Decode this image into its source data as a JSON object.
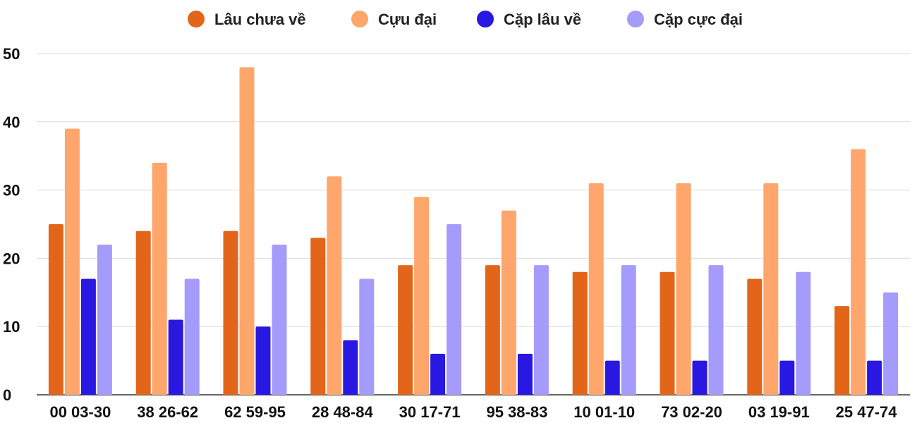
{
  "chart_data": {
    "type": "bar",
    "title": "",
    "xlabel": "",
    "ylabel": "",
    "ylim": [
      0,
      50
    ],
    "yticks": [
      0,
      10,
      20,
      30,
      40,
      50
    ],
    "grid": true,
    "legend_position": "top-center",
    "categories": [
      "00 03-30",
      "38 26-62",
      "62 59-95",
      "28 48-84",
      "30 17-71",
      "95 38-83",
      "10 01-10",
      "73 02-20",
      "03 19-91",
      "25 47-74"
    ],
    "series": [
      {
        "name": "Lâu chưa về",
        "color": "#e2651a",
        "values": [
          25,
          24,
          24,
          23,
          19,
          19,
          18,
          18,
          17,
          13
        ]
      },
      {
        "name": "Cựu đại",
        "color": "#ffa66c",
        "values": [
          39,
          34,
          48,
          32,
          29,
          27,
          31,
          31,
          31,
          36
        ]
      },
      {
        "name": "Cặp lâu về",
        "color": "#2917e2",
        "values": [
          17,
          11,
          10,
          8,
          6,
          6,
          5,
          5,
          5,
          5
        ]
      },
      {
        "name": "Cặp cực đại",
        "color": "#a59bfb",
        "values": [
          22,
          17,
          22,
          17,
          25,
          19,
          19,
          19,
          18,
          15
        ]
      }
    ]
  }
}
